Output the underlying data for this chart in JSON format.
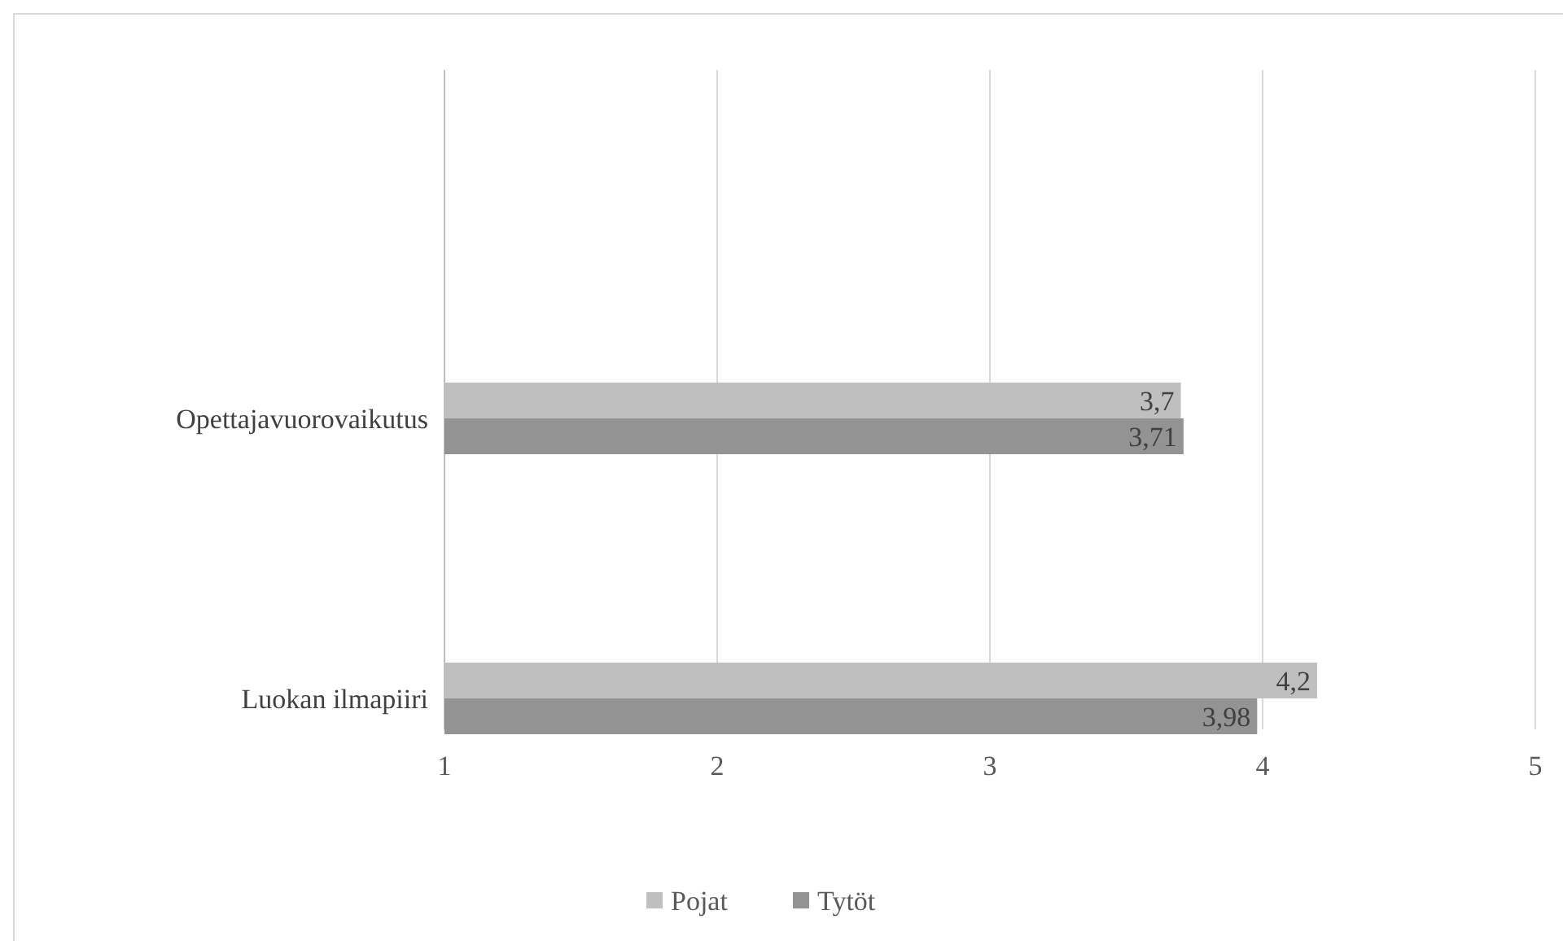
{
  "chart_data": {
    "type": "bar",
    "orientation": "horizontal",
    "categories": [
      "Opettajavuorovaikutus",
      "Luokan ilmapiiri"
    ],
    "series": [
      {
        "name": "Pojat",
        "color": "#bfbfbf",
        "values": [
          3.7,
          4.2
        ],
        "value_labels": [
          "3,7",
          "4,2"
        ]
      },
      {
        "name": "Tytöt",
        "color": "#939393",
        "values": [
          3.71,
          3.98
        ],
        "value_labels": [
          "3,71",
          "3,98"
        ]
      }
    ],
    "xlim": [
      1,
      5
    ],
    "xticks": [
      1,
      2,
      3,
      4,
      5
    ],
    "grid": "x",
    "legend": "bottom"
  }
}
